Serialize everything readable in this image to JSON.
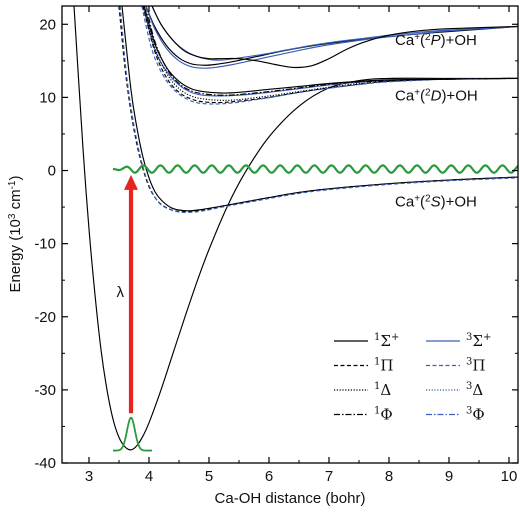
{
  "chart_data": {
    "type": "line",
    "xlabel": "Ca-OH distance (bohr)",
    "ylabel_main": "Energy (10",
    "ylabel_sup": "3",
    "ylabel_mid": " cm",
    "ylabel_sup2": "-1",
    "ylabel_end": ")",
    "xlim": [
      2.55,
      10.15
    ],
    "ylim": [
      -40,
      22.5
    ],
    "xticks": [
      "3",
      "4",
      "5",
      "6",
      "7",
      "8",
      "9",
      "10"
    ],
    "xtick_values": [
      3,
      4,
      5,
      6,
      7,
      8,
      9,
      10
    ],
    "yticks": [
      "20",
      "10",
      "0",
      "-10",
      "-20",
      "-30",
      "-40"
    ],
    "ytick_values": [
      20,
      10,
      0,
      -10,
      -20,
      -30,
      -40
    ],
    "asymptote_labels": [
      {
        "pre": "Ca",
        "sup": "+",
        "mid": "(",
        "sup2": "2",
        "term": "P",
        "post": ")+OH",
        "x": 8.1,
        "y": 17.2
      },
      {
        "pre": "Ca",
        "sup": "+",
        "mid": "(",
        "sup2": "2",
        "term": "D",
        "post": ")+OH",
        "x": 8.1,
        "y": 9.6
      },
      {
        "pre": "Ca",
        "sup": "+",
        "mid": "(",
        "sup2": "2",
        "term": "S",
        "post": ")+OH",
        "x": 8.1,
        "y": -4.9
      }
    ],
    "arrow": {
      "x": 3.7,
      "y_from": -33.2,
      "y_to": -0.6,
      "label": "λ",
      "label_x": 3.52,
      "label_y": -17.3,
      "color": "#e8231f"
    },
    "ground_state_wavepacket": {
      "center": 3.7,
      "y_base": -38.3,
      "height": 4.5,
      "width": 0.16,
      "x_range": [
        3.4,
        4.05
      ],
      "color": "#2a9a3f"
    },
    "continuum_wave": {
      "y": 0.2,
      "amplitude": 0.5,
      "x_start": 3.4,
      "x_end": 10.15,
      "period": 0.285,
      "color": "#2a9a3f"
    },
    "legend": [
      {
        "label": "Σ",
        "sup": "1",
        "sup2": "+",
        "style": "solid",
        "color": "#000000",
        "col": 0
      },
      {
        "label": "Π",
        "sup": "1",
        "sup2": "",
        "style": "dashed",
        "color": "#000000",
        "col": 0
      },
      {
        "label": "Δ",
        "sup": "1",
        "sup2": "",
        "style": "dotted",
        "color": "#000000",
        "col": 0
      },
      {
        "label": "Φ",
        "sup": "1",
        "sup2": "",
        "style": "dashdot",
        "color": "#000000",
        "col": 0
      },
      {
        "label": "Σ",
        "sup": "3",
        "sup2": "+",
        "style": "solid",
        "color": "#3b5fb8",
        "col": 1
      },
      {
        "label": "Π",
        "sup": "3",
        "sup2": "",
        "style": "dashed",
        "color": "#3b5fb8",
        "col": 1
      },
      {
        "label": "Δ",
        "sup": "3",
        "sup2": "",
        "style": "dotted",
        "color": "#3b5fb8",
        "col": 1
      },
      {
        "label": "Φ",
        "sup": "3",
        "sup2": "",
        "style": "dashdot",
        "color": "#3b5fb8",
        "col": 1
      }
    ],
    "series": [
      {
        "symmetry": "1Σ+ ground",
        "color": "#000000",
        "style": "solid",
        "x": [
          2.75,
          2.9,
          3.0,
          3.1,
          3.2,
          3.3,
          3.4,
          3.5,
          3.6,
          3.7,
          3.8,
          3.9,
          4.0,
          4.2,
          4.4,
          4.6,
          4.8,
          5.0,
          5.3,
          5.6,
          6.0,
          6.5,
          7.0,
          7.5,
          8.0,
          9.0,
          10.15
        ],
        "y": [
          22.5,
          3.0,
          -8.0,
          -17.0,
          -24.5,
          -30.0,
          -34.0,
          -36.5,
          -37.8,
          -38.2,
          -37.6,
          -36.3,
          -34.5,
          -30.0,
          -25.0,
          -20.0,
          -15.2,
          -10.8,
          -5.0,
          -0.3,
          4.6,
          8.8,
          11.3,
          12.3,
          12.6,
          12.6,
          12.6
        ]
      },
      {
        "symmetry": "1Σ+ (2S)",
        "color": "#000000",
        "style": "solid",
        "x": [
          3.55,
          3.7,
          3.8,
          3.9,
          4.0,
          4.1,
          4.2,
          4.35,
          4.5,
          4.7,
          4.9,
          5.2,
          5.6,
          6.0,
          6.5,
          7.0,
          8.0,
          9.0,
          10.15
        ],
        "y": [
          22.5,
          11.0,
          5.8,
          1.8,
          -1.0,
          -2.9,
          -4.0,
          -5.0,
          -5.4,
          -5.5,
          -5.3,
          -4.9,
          -4.3,
          -3.7,
          -3.0,
          -2.5,
          -1.8,
          -1.3,
          -0.9
        ]
      },
      {
        "symmetry": "1Π (2S)",
        "color": "#000000",
        "style": "dashed",
        "x": [
          3.5,
          3.6,
          3.7,
          3.8,
          3.9,
          4.0,
          4.1,
          4.2,
          4.35,
          4.5,
          4.7,
          4.9,
          5.2,
          5.6,
          6.0,
          6.5,
          7.0,
          8.0,
          9.0,
          10.15
        ],
        "y": [
          22.5,
          14.0,
          8.0,
          3.5,
          0.2,
          -2.2,
          -3.7,
          -4.6,
          -5.3,
          -5.6,
          -5.6,
          -5.4,
          -4.9,
          -4.3,
          -3.7,
          -3.0,
          -2.5,
          -1.8,
          -1.3,
          -0.9
        ]
      },
      {
        "symmetry": "3Π (2S)",
        "color": "#3b5fb8",
        "style": "dashed",
        "x": [
          3.52,
          3.62,
          3.72,
          3.82,
          3.92,
          4.02,
          4.12,
          4.22,
          4.37,
          4.52,
          4.72,
          4.92,
          5.22,
          5.62,
          6.02,
          6.52,
          7.02,
          8.0,
          9.0,
          10.15
        ],
        "y": [
          22.5,
          13.5,
          7.6,
          3.2,
          -0.1,
          -2.4,
          -3.9,
          -4.8,
          -5.4,
          -5.7,
          -5.7,
          -5.5,
          -5.0,
          -4.4,
          -3.8,
          -3.1,
          -2.6,
          -1.9,
          -1.4,
          -1.0
        ]
      },
      {
        "symmetry": "3Σ+ (2D)",
        "color": "#3b5fb8",
        "style": "solid",
        "x": [
          3.9,
          4.1,
          4.3,
          4.5,
          4.7,
          4.9,
          5.2,
          5.5,
          6.0,
          6.5,
          7.0,
          7.5,
          8.0,
          9.0,
          10.15
        ],
        "y": [
          22.5,
          16.5,
          13.5,
          11.7,
          10.7,
          10.3,
          10.2,
          10.3,
          10.7,
          11.2,
          11.7,
          12.1,
          12.3,
          12.5,
          12.6
        ]
      },
      {
        "symmetry": "1Δ (2D)",
        "color": "#000000",
        "style": "dotted",
        "x": [
          3.92,
          4.1,
          4.3,
          4.5,
          4.7,
          4.9,
          5.2,
          5.5,
          6.0,
          6.5,
          7.0,
          7.5,
          8.0,
          9.0,
          10.15
        ],
        "y": [
          22.5,
          16.8,
          13.2,
          11.2,
          10.2,
          9.8,
          9.6,
          9.7,
          10.2,
          10.8,
          11.4,
          11.9,
          12.2,
          12.5,
          12.6
        ]
      },
      {
        "symmetry": "1Π (2D)",
        "color": "#000000",
        "style": "dashed",
        "x": [
          3.9,
          4.1,
          4.3,
          4.5,
          4.7,
          4.9,
          5.2,
          5.5,
          6.0,
          6.5,
          7.0,
          7.5,
          8.0,
          9.0,
          10.15
        ],
        "y": [
          22.5,
          16.2,
          12.6,
          10.7,
          9.8,
          9.4,
          9.3,
          9.5,
          10.0,
          10.7,
          11.3,
          11.8,
          12.2,
          12.5,
          12.6
        ]
      },
      {
        "symmetry": "1Φ (2D)",
        "color": "#000000",
        "style": "dashdot",
        "x": [
          3.95,
          4.1,
          4.3,
          4.5,
          4.7,
          4.9,
          5.2,
          5.5,
          6.0,
          6.5,
          7.0,
          7.5,
          8.0,
          9.0,
          10.15
        ],
        "y": [
          22.5,
          17.6,
          13.9,
          11.9,
          10.9,
          10.5,
          10.3,
          10.4,
          10.8,
          11.3,
          11.8,
          12.1,
          12.3,
          12.5,
          12.6
        ]
      },
      {
        "symmetry": "3Π (2D)",
        "color": "#3b5fb8",
        "style": "dashed",
        "x": [
          3.88,
          4.05,
          4.25,
          4.45,
          4.65,
          4.85,
          5.15,
          5.45,
          5.95,
          6.45,
          6.95,
          7.45,
          7.95,
          9.0,
          10.15
        ],
        "y": [
          22.5,
          16.5,
          12.8,
          10.8,
          9.7,
          9.2,
          9.1,
          9.3,
          9.9,
          10.6,
          11.2,
          11.7,
          12.1,
          12.5,
          12.6
        ]
      },
      {
        "symmetry": "1Σ+ (2D)",
        "color": "#000000",
        "style": "solid",
        "x": [
          3.92,
          4.1,
          4.3,
          4.5,
          4.7,
          4.9,
          5.2,
          5.5,
          6.0,
          6.5,
          7.0,
          7.5,
          8.0,
          9.0,
          10.15
        ],
        "y": [
          22.5,
          17.3,
          14.0,
          12.2,
          11.2,
          10.8,
          10.6,
          10.7,
          11.1,
          11.5,
          11.9,
          12.2,
          12.4,
          12.5,
          12.6
        ]
      },
      {
        "symmetry": "1Π (2P)",
        "color": "#000000",
        "style": "solid",
        "x": [
          3.95,
          4.1,
          4.3,
          4.5,
          4.7,
          4.9,
          5.1,
          5.4,
          5.8,
          6.2,
          6.6,
          7.0,
          7.5,
          8.0,
          8.5,
          9.0,
          10.15
        ],
        "y": [
          22.5,
          19.6,
          17.0,
          15.4,
          14.6,
          14.4,
          14.5,
          14.9,
          15.6,
          16.3,
          16.9,
          17.4,
          17.9,
          18.3,
          18.7,
          19.0,
          19.7
        ]
      },
      {
        "symmetry": "3Π (2P)",
        "color": "#3b5fb8",
        "style": "solid",
        "x": [
          3.95,
          4.1,
          4.3,
          4.5,
          4.7,
          4.9,
          5.1,
          5.4,
          5.8,
          6.2,
          6.6,
          7.0,
          7.5,
          8.0,
          8.5,
          9.0,
          10.15
        ],
        "y": [
          22.5,
          19.3,
          16.6,
          15.0,
          14.2,
          14.0,
          14.1,
          14.5,
          15.2,
          15.9,
          16.6,
          17.2,
          17.8,
          18.3,
          18.7,
          19.1,
          19.7
        ]
      },
      {
        "symmetry": "3Σ+ (2P)",
        "color": "#3b5fb8",
        "style": "solid",
        "x": [
          4.05,
          4.2,
          4.4,
          4.6,
          4.8,
          5.0,
          5.2,
          5.5,
          5.9,
          6.3,
          6.7,
          7.1,
          7.6,
          8.0,
          8.5,
          9.0,
          10.15
        ],
        "y": [
          22.5,
          20.0,
          17.8,
          16.4,
          15.6,
          15.2,
          15.1,
          15.4,
          15.9,
          16.5,
          17.1,
          17.6,
          18.1,
          18.5,
          18.9,
          19.2,
          19.7
        ]
      },
      {
        "symmetry": "1Σ+ (2P)",
        "color": "#000000",
        "style": "solid",
        "x": [
          4.05,
          4.2,
          4.4,
          4.6,
          4.8,
          5.0,
          5.2,
          5.5,
          5.8,
          6.1,
          6.4,
          6.7,
          7.0,
          7.3,
          7.6,
          8.0,
          8.5,
          9.0,
          10.15
        ],
        "y": [
          22.5,
          20.0,
          17.8,
          16.3,
          15.6,
          15.3,
          15.3,
          15.3,
          15.0,
          14.5,
          14.1,
          14.3,
          15.3,
          16.6,
          17.6,
          18.5,
          19.1,
          19.4,
          19.7
        ]
      }
    ]
  }
}
